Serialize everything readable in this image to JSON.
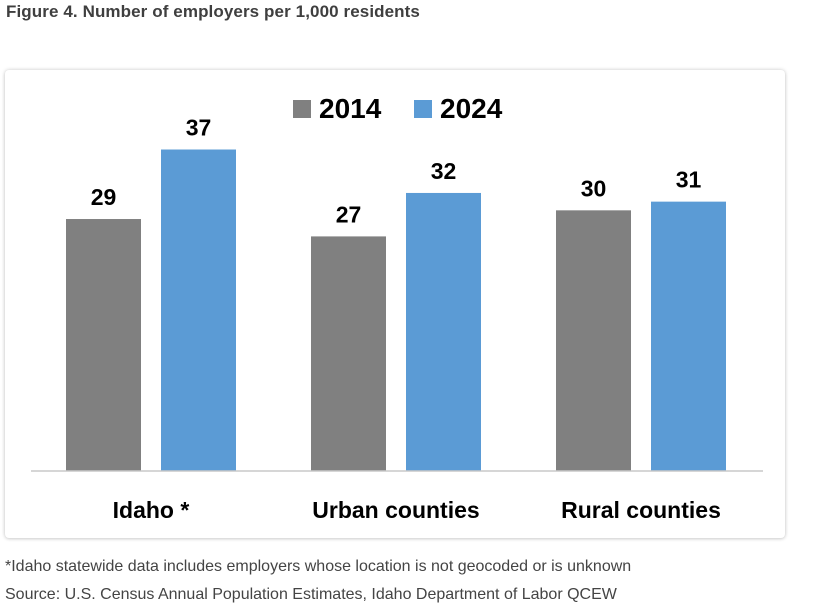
{
  "figure": {
    "title": "Figure 4. Number of employers per 1,000 residents"
  },
  "chart_data": {
    "type": "bar",
    "title": "",
    "xlabel": "",
    "ylabel": "",
    "categories": [
      "Idaho *",
      "Urban counties",
      "Rural counties"
    ],
    "series": [
      {
        "name": "2014",
        "color": "#808080",
        "values": [
          29,
          27,
          30
        ]
      },
      {
        "name": "2024",
        "color": "#5B9BD5",
        "values": [
          37,
          32,
          31
        ]
      }
    ],
    "ylim": [
      0,
      45
    ],
    "grid": false,
    "legend": "top-center",
    "data_labels": true
  },
  "notes": {
    "footnote": "*Idaho statewide data includes employers whose location is not geocoded or is unknown",
    "source": "Source: U.S. Census Annual Population Estimates, Idaho Department of Labor QCEW"
  }
}
